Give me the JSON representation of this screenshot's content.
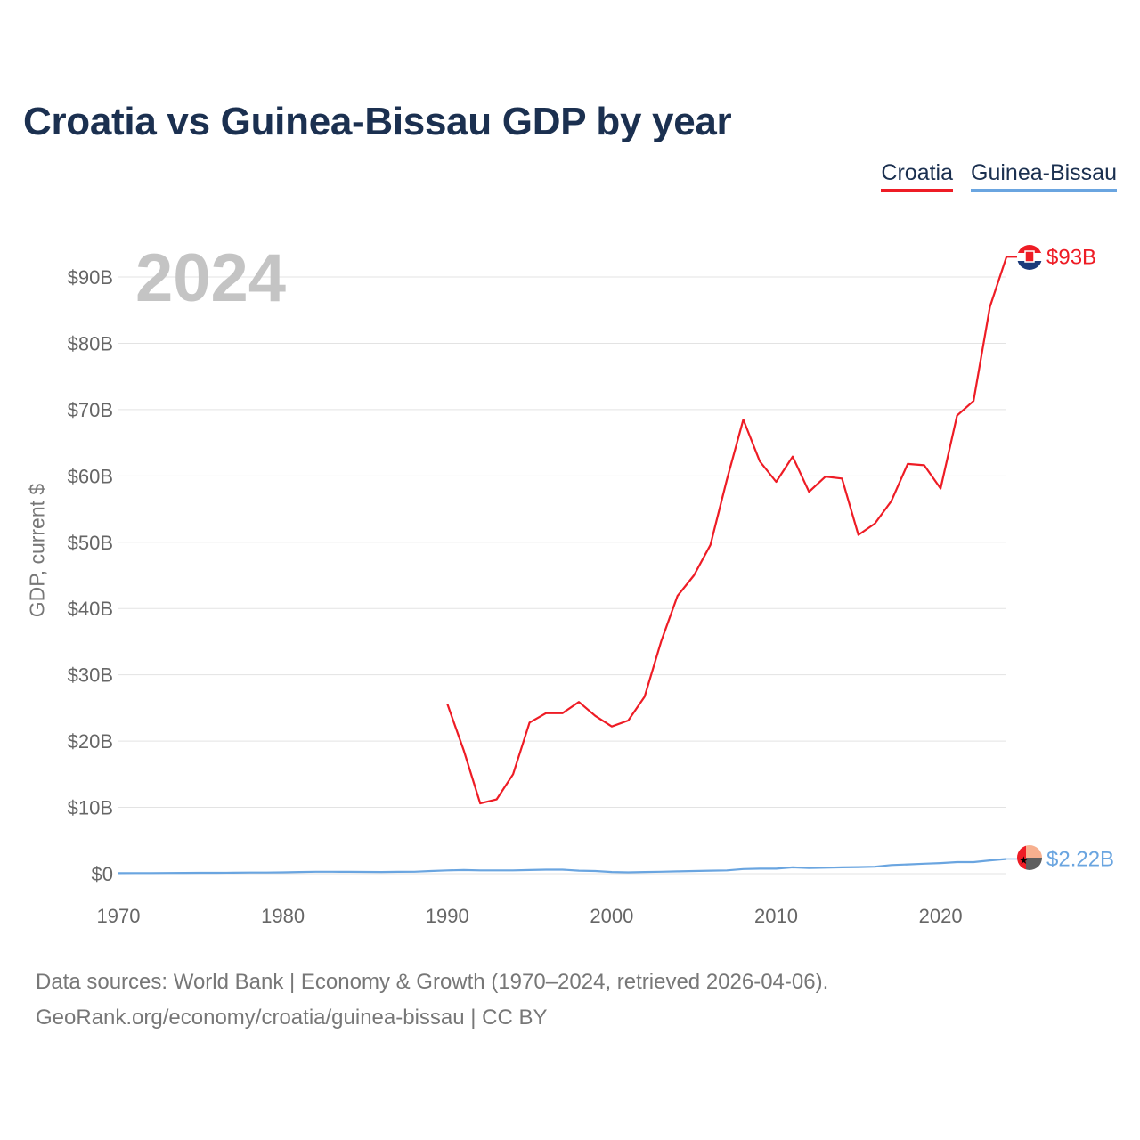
{
  "title": "Croatia vs Guinea-Bissau GDP by year",
  "year_label": "2024",
  "legend": [
    {
      "label": "Croatia",
      "color": "#ee1c25"
    },
    {
      "label": "Guinea-Bissau",
      "color": "#6aa5e0"
    }
  ],
  "footer": {
    "line1": "Data sources: World Bank | Economy & Growth (1970–2024, retrieved 2026-04-06).",
    "line2": "GeoRank.org/economy/croatia/guinea-bissau | CC BY"
  },
  "chart_data": {
    "type": "line",
    "title": "Croatia vs Guinea-Bissau GDP by year",
    "xlabel": "",
    "ylabel": "GDP, current $",
    "xlim": [
      1970,
      2024
    ],
    "ylim": [
      0,
      90
    ],
    "y_unit": "billion USD",
    "x_ticks": [
      1970,
      1980,
      1990,
      2000,
      2010,
      2020
    ],
    "y_ticks": [
      0,
      10,
      20,
      30,
      40,
      50,
      60,
      70,
      80,
      90
    ],
    "y_tick_labels": [
      "$0",
      "$10B",
      "$20B",
      "$30B",
      "$40B",
      "$50B",
      "$60B",
      "$70B",
      "$80B",
      "$90B"
    ],
    "grid": true,
    "legend_position": "top-right",
    "series": [
      {
        "name": "Croatia",
        "color": "#ee1c25",
        "end_label": "$93B",
        "x": [
          1990,
          1991,
          1992,
          1993,
          1994,
          1995,
          1996,
          1997,
          1998,
          1999,
          2000,
          2001,
          2002,
          2003,
          2004,
          2005,
          2006,
          2007,
          2008,
          2009,
          2010,
          2011,
          2012,
          2013,
          2014,
          2015,
          2016,
          2017,
          2018,
          2019,
          2020,
          2021,
          2022,
          2023,
          2024
        ],
        "values": [
          25.6,
          18.6,
          10.6,
          11.2,
          15.0,
          22.8,
          24.2,
          24.2,
          25.9,
          23.8,
          22.2,
          23.1,
          26.7,
          35.0,
          41.9,
          45.0,
          49.6,
          59.4,
          68.5,
          62.2,
          59.1,
          62.9,
          57.6,
          59.9,
          59.6,
          51.1,
          52.8,
          56.2,
          61.8,
          61.6,
          58.1,
          69.1,
          71.3,
          85.5,
          93.0
        ]
      },
      {
        "name": "Guinea-Bissau",
        "color": "#6aa5e0",
        "end_label": "$2.22B",
        "x": [
          1970,
          1971,
          1972,
          1973,
          1974,
          1975,
          1976,
          1977,
          1978,
          1979,
          1980,
          1981,
          1982,
          1983,
          1984,
          1985,
          1986,
          1987,
          1988,
          1989,
          1990,
          1991,
          1992,
          1993,
          1994,
          1995,
          1996,
          1997,
          1998,
          1999,
          2000,
          2001,
          2002,
          2003,
          2004,
          2005,
          2006,
          2007,
          2008,
          2009,
          2010,
          2011,
          2012,
          2013,
          2014,
          2015,
          2016,
          2017,
          2018,
          2019,
          2020,
          2021,
          2022,
          2023,
          2024
        ],
        "values": [
          0.08,
          0.09,
          0.1,
          0.11,
          0.12,
          0.13,
          0.14,
          0.15,
          0.17,
          0.18,
          0.2,
          0.25,
          0.3,
          0.3,
          0.28,
          0.27,
          0.26,
          0.28,
          0.3,
          0.4,
          0.5,
          0.55,
          0.5,
          0.5,
          0.5,
          0.55,
          0.6,
          0.6,
          0.45,
          0.4,
          0.25,
          0.2,
          0.25,
          0.3,
          0.35,
          0.4,
          0.45,
          0.5,
          0.7,
          0.75,
          0.75,
          0.95,
          0.85,
          0.9,
          0.95,
          1.0,
          1.05,
          1.3,
          1.4,
          1.5,
          1.6,
          1.75,
          1.75,
          2.0,
          2.22
        ]
      }
    ]
  }
}
